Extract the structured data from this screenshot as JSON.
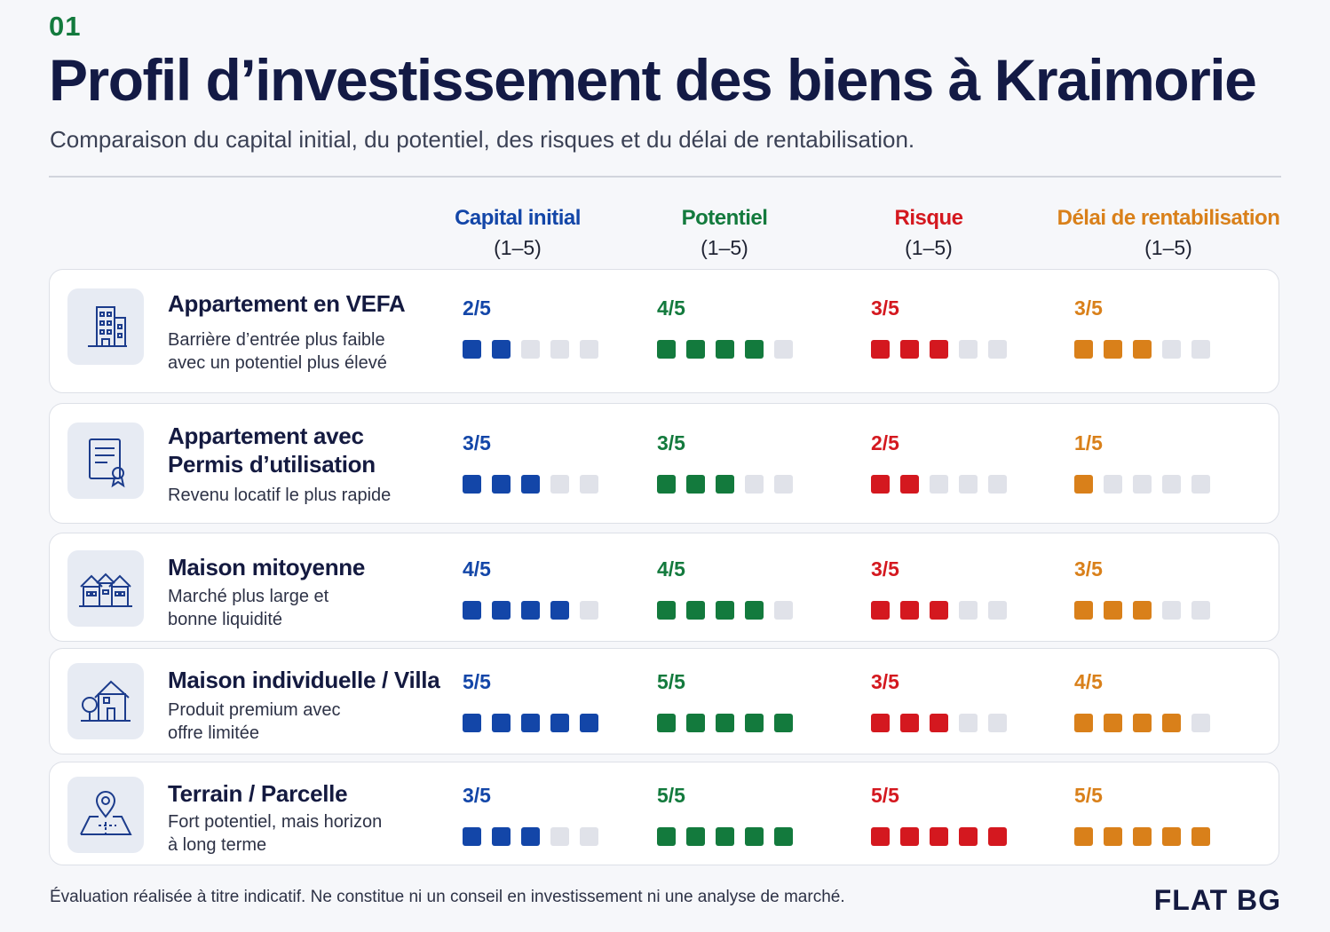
{
  "header": {
    "number": "01",
    "title": "Profil d’investissement des biens à Kraimorie",
    "subtitle": "Comparaison du capital initial, du potentiel, des risques et du délai de rentabilisation."
  },
  "columns": [
    {
      "name": "Capital initial",
      "range": "(1–5)",
      "color": "#1346a8"
    },
    {
      "name": "Potentiel",
      "range": "(1–5)",
      "color": "#137a3d"
    },
    {
      "name": "Risque",
      "range": "(1–5)",
      "color": "#d4181f"
    },
    {
      "name": "Délai de rentabilisation",
      "range": "(1–5)",
      "color": "#d9801a"
    }
  ],
  "rows": [
    {
      "name": "Appartement en VEFA",
      "description": "Barrière d’entrée plus faible\navec un potentiel plus élevé",
      "icon": "building-icon",
      "scores": [
        {
          "label": "2/5",
          "value": 2
        },
        {
          "label": "4/5",
          "value": 4
        },
        {
          "label": "3/5",
          "value": 3
        },
        {
          "label": "3/5",
          "value": 3
        }
      ]
    },
    {
      "name": "Appartement avec\nPermis d’utilisation",
      "description": "Revenu locatif le plus rapide",
      "icon": "certificate-icon",
      "scores": [
        {
          "label": "3/5",
          "value": 3
        },
        {
          "label": "3/5",
          "value": 3
        },
        {
          "label": "2/5",
          "value": 2
        },
        {
          "label": "1/5",
          "value": 1
        }
      ]
    },
    {
      "name": "Maison mitoyenne",
      "description": "Marché plus large et\nbonne liquidité",
      "icon": "townhouses-icon",
      "scores": [
        {
          "label": "4/5",
          "value": 4
        },
        {
          "label": "4/5",
          "value": 4
        },
        {
          "label": "3/5",
          "value": 3
        },
        {
          "label": "3/5",
          "value": 3
        }
      ]
    },
    {
      "name": "Maison individuelle / Villa",
      "description": "Produit premium avec\noffre limitée",
      "icon": "house-tree-icon",
      "scores": [
        {
          "label": "5/5",
          "value": 5
        },
        {
          "label": "5/5",
          "value": 5
        },
        {
          "label": "3/5",
          "value": 3
        },
        {
          "label": "4/5",
          "value": 4
        }
      ]
    },
    {
      "name": "Terrain / Parcelle",
      "description": "Fort potentiel, mais horizon\nà long terme",
      "icon": "map-pin-icon",
      "scores": [
        {
          "label": "3/5",
          "value": 3
        },
        {
          "label": "5/5",
          "value": 5
        },
        {
          "label": "5/5",
          "value": 5
        },
        {
          "label": "5/5",
          "value": 5
        }
      ]
    }
  ],
  "footer": {
    "disclaimer": "Évaluation réalisée à titre indicatif. Ne constitue ni un conseil en investissement ni une analyse de marché.",
    "brand": "FLAT BG"
  }
}
